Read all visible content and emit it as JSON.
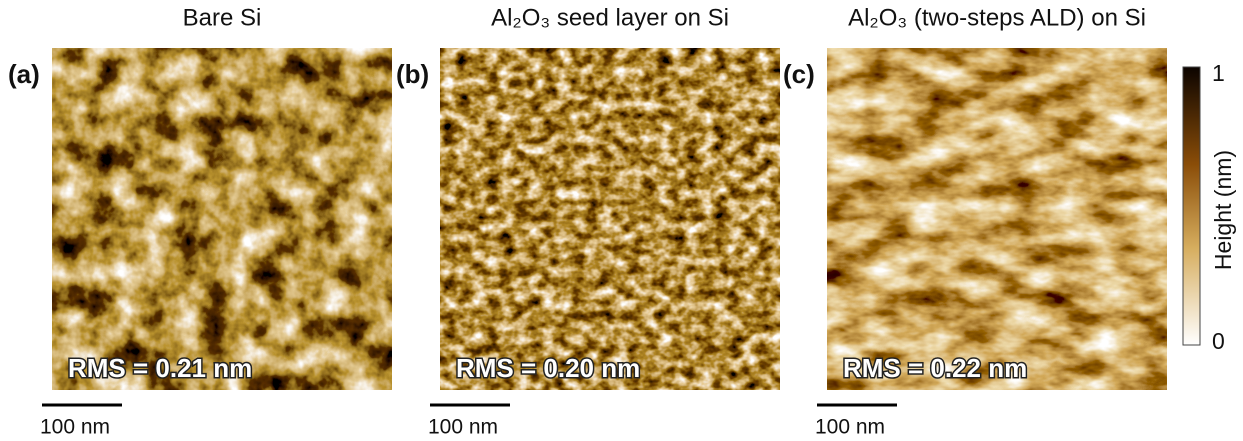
{
  "panels": [
    {
      "label": "(a)",
      "title": "Bare Si",
      "rms": "RMS = 0.21 nm",
      "scale_bar": "100 nm"
    },
    {
      "label": "(b)",
      "title": "Al₂O₃ seed layer on Si",
      "rms": "RMS = 0.20 nm",
      "scale_bar": "100 nm"
    },
    {
      "label": "(c)",
      "title": "Al₂O₃ (two-steps ALD) on Si",
      "rms": "RMS = 0.22 nm",
      "scale_bar": "100 nm"
    }
  ],
  "colorbar": {
    "label": "Height (nm)",
    "max_label": "1",
    "min_label": "0"
  }
}
